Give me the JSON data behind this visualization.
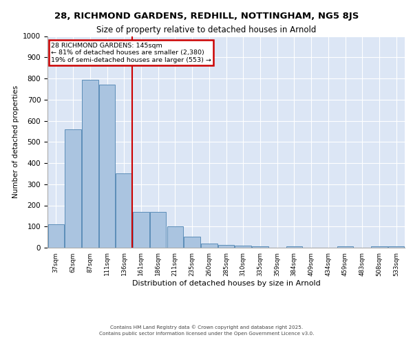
{
  "title1": "28, RICHMOND GARDENS, REDHILL, NOTTINGHAM, NG5 8JS",
  "title2": "Size of property relative to detached houses in Arnold",
  "xlabel": "Distribution of detached houses by size in Arnold",
  "ylabel": "Number of detached properties",
  "categories": [
    "37sqm",
    "62sqm",
    "87sqm",
    "111sqm",
    "136sqm",
    "161sqm",
    "186sqm",
    "211sqm",
    "235sqm",
    "260sqm",
    "285sqm",
    "310sqm",
    "335sqm",
    "359sqm",
    "384sqm",
    "409sqm",
    "434sqm",
    "459sqm",
    "483sqm",
    "508sqm",
    "533sqm"
  ],
  "values": [
    112,
    560,
    795,
    770,
    350,
    168,
    168,
    100,
    53,
    18,
    12,
    10,
    8,
    0,
    8,
    0,
    0,
    5,
    0,
    5,
    5
  ],
  "bar_color": "#aac4e0",
  "bar_edge_color": "#5b8db8",
  "vline_color": "#cc0000",
  "vline_x": 4.475,
  "annotation_line1": "28 RICHMOND GARDENS: 145sqm",
  "annotation_line2": "← 81% of detached houses are smaller (2,380)",
  "annotation_line3": "19% of semi-detached houses are larger (553) →",
  "annotation_box_color": "#cc0000",
  "background_color": "#dce6f5",
  "footer_line1": "Contains HM Land Registry data © Crown copyright and database right 2025.",
  "footer_line2": "Contains public sector information licensed under the Open Government Licence v3.0.",
  "ylim": [
    0,
    1000
  ],
  "yticks": [
    0,
    100,
    200,
    300,
    400,
    500,
    600,
    700,
    800,
    900,
    1000
  ]
}
